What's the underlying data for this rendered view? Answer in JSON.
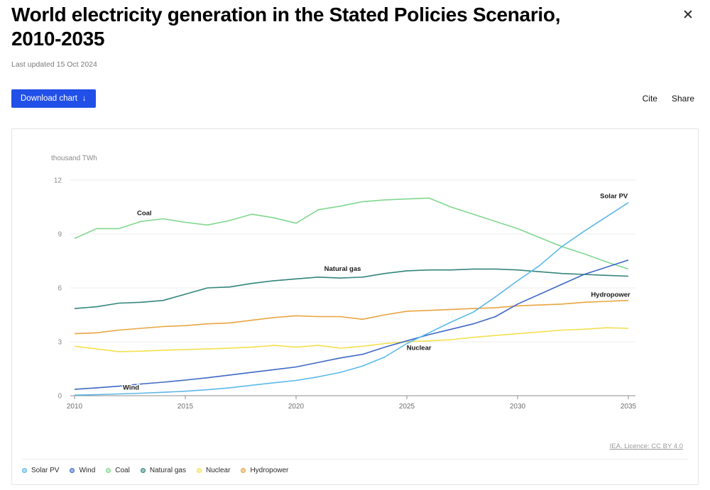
{
  "header": {
    "title": "World electricity generation in the Stated Policies Scenario, 2010-2035",
    "last_updated": "Last updated 15 Oct 2024",
    "close_glyph": "✕"
  },
  "toolbar": {
    "download_label": "Download chart",
    "download_arrow": "↓",
    "cite_label": "Cite",
    "share_label": "Share",
    "accent_color": "#2150e8"
  },
  "chart_data": {
    "type": "line",
    "title": "World electricity generation in the Stated Policies Scenario, 2010-2035",
    "unit_label": "thousand TWh",
    "source": "IEA. Licence: CC BY 4.0",
    "x": [
      2010,
      2011,
      2012,
      2013,
      2014,
      2015,
      2016,
      2017,
      2018,
      2019,
      2020,
      2021,
      2022,
      2023,
      2024,
      2025,
      2026,
      2027,
      2028,
      2029,
      2030,
      2031,
      2032,
      2033,
      2034,
      2035
    ],
    "xticks": [
      2010,
      2015,
      2020,
      2025,
      2030,
      2035
    ],
    "yticks": [
      0,
      3,
      6,
      9,
      12
    ],
    "ylim": [
      0,
      12
    ],
    "grid": "horizontal",
    "legend_position": "bottom",
    "series": [
      {
        "name": "Solar PV",
        "color": "#5bb8e8",
        "values": [
          0.03,
          0.06,
          0.1,
          0.14,
          0.19,
          0.25,
          0.33,
          0.44,
          0.58,
          0.72,
          0.85,
          1.05,
          1.3,
          1.65,
          2.15,
          2.9,
          3.5,
          4.1,
          4.65,
          5.5,
          6.4,
          7.25,
          8.3,
          9.15,
          9.95,
          10.75
        ]
      },
      {
        "name": "Wind",
        "color": "#3e68c4",
        "values": [
          0.35,
          0.44,
          0.53,
          0.65,
          0.75,
          0.87,
          1.0,
          1.15,
          1.3,
          1.45,
          1.6,
          1.85,
          2.1,
          2.3,
          2.7,
          3.05,
          3.4,
          3.7,
          4.0,
          4.4,
          5.1,
          5.65,
          6.2,
          6.75,
          7.15,
          7.55
        ]
      },
      {
        "name": "Coal",
        "color": "#80d78f",
        "values": [
          8.75,
          9.3,
          9.3,
          9.7,
          9.85,
          9.65,
          9.5,
          9.75,
          10.1,
          9.9,
          9.6,
          10.35,
          10.55,
          10.8,
          10.9,
          10.95,
          11.0,
          10.5,
          10.1,
          9.7,
          9.3,
          8.8,
          8.3,
          7.9,
          7.45,
          7.05
        ]
      },
      {
        "name": "Natural gas",
        "color": "#33857a",
        "values": [
          4.85,
          4.95,
          5.15,
          5.2,
          5.3,
          5.65,
          6.0,
          6.05,
          6.25,
          6.4,
          6.5,
          6.6,
          6.55,
          6.6,
          6.8,
          6.95,
          7.0,
          7.0,
          7.05,
          7.05,
          7.0,
          6.9,
          6.8,
          6.75,
          6.7,
          6.65
        ]
      },
      {
        "name": "Nuclear",
        "color": "#f5e04e",
        "values": [
          2.75,
          2.6,
          2.45,
          2.48,
          2.53,
          2.57,
          2.6,
          2.65,
          2.7,
          2.8,
          2.7,
          2.8,
          2.65,
          2.75,
          2.9,
          3.0,
          3.05,
          3.12,
          3.25,
          3.35,
          3.45,
          3.55,
          3.65,
          3.7,
          3.78,
          3.75
        ]
      },
      {
        "name": "Hydropower",
        "color": "#e9a440",
        "values": [
          3.45,
          3.5,
          3.65,
          3.75,
          3.85,
          3.9,
          4.0,
          4.05,
          4.2,
          4.35,
          4.45,
          4.4,
          4.4,
          4.25,
          4.5,
          4.7,
          4.75,
          4.8,
          4.85,
          4.9,
          5.0,
          5.05,
          5.1,
          5.2,
          5.25,
          5.3
        ]
      }
    ]
  }
}
